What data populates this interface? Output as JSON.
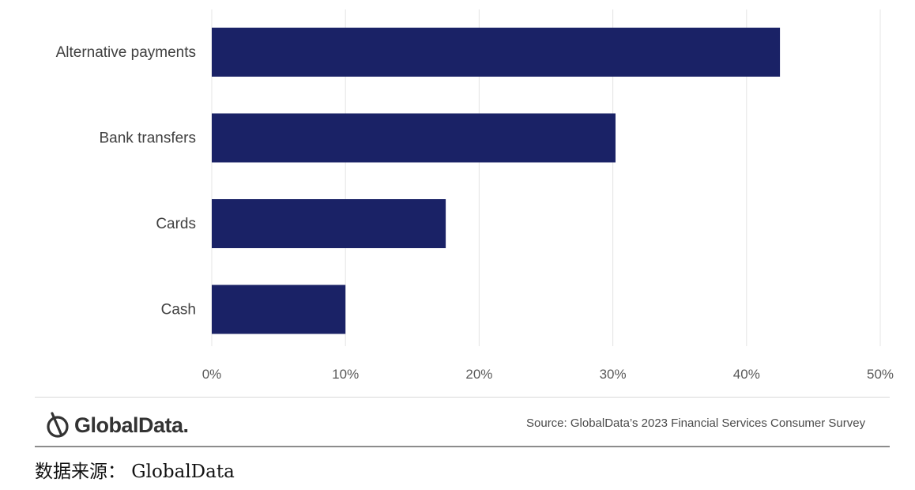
{
  "chart_data": {
    "type": "bar",
    "orientation": "horizontal",
    "categories": [
      "Alternative payments",
      "Bank transfers",
      "Cards",
      "Cash"
    ],
    "values": [
      42.5,
      30.2,
      17.5,
      10.0
    ],
    "xlim": [
      0,
      50
    ],
    "x_ticks": [
      0,
      10,
      20,
      30,
      40,
      50
    ],
    "x_tick_labels": [
      "0%",
      "10%",
      "20%",
      "30%",
      "40%",
      "50%"
    ],
    "bar_color": "#1a2266",
    "grid": true,
    "title": "",
    "xlabel": "",
    "ylabel": ""
  },
  "footer": {
    "brand_name": "GlobalData.",
    "source": "Source: GlobalData’s 2023 Financial Services Consumer Survey"
  },
  "caption": "数据来源： GlobalData"
}
